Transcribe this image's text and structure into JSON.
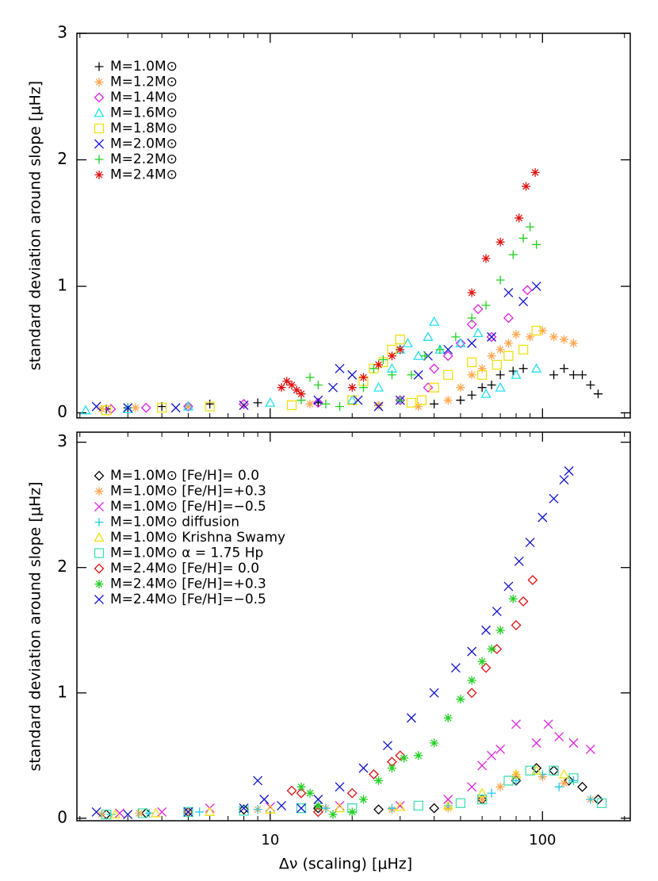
{
  "chart_data": [
    {
      "type": "scatter",
      "y_label": "standard deviation around slope [μHz]",
      "xscale": "log",
      "xlim": [
        1.95,
        210
      ],
      "xticks": [
        10,
        100
      ],
      "xminorticks": [
        2,
        3,
        4,
        5,
        6,
        7,
        8,
        9,
        20,
        30,
        40,
        50,
        60,
        70,
        80,
        90,
        200
      ],
      "show_xtick_labels": false,
      "ylim": [
        -0.04,
        3.0
      ],
      "yticks": [
        0,
        1,
        2,
        3
      ],
      "legend": "upper left",
      "series": [
        {
          "name": "M=1.0M⊙",
          "color": "#000000",
          "marker": "plus",
          "x": [
            2.5,
            3,
            4,
            6,
            9,
            15,
            25,
            40,
            50,
            55,
            60,
            65,
            70,
            78,
            85,
            110,
            120,
            130,
            140,
            150,
            160
          ],
          "values": [
            0.03,
            0.04,
            0.05,
            0.07,
            0.08,
            0.08,
            0.06,
            0.07,
            0.1,
            0.14,
            0.2,
            0.22,
            0.3,
            0.33,
            0.35,
            0.3,
            0.35,
            0.3,
            0.3,
            0.22,
            0.15
          ]
        },
        {
          "name": "M=1.2M⊙",
          "color": "#ffa64d",
          "marker": "asterisk",
          "x": [
            2.4,
            3.2,
            5,
            8,
            14,
            25,
            35,
            45,
            50,
            55,
            60,
            65,
            70,
            75,
            80,
            90,
            100,
            110,
            120,
            130
          ],
          "values": [
            0.03,
            0.04,
            0.05,
            0.06,
            0.07,
            0.06,
            0.05,
            0.1,
            0.2,
            0.3,
            0.35,
            0.45,
            0.5,
            0.55,
            0.62,
            0.6,
            0.65,
            0.6,
            0.58,
            0.55
          ]
        },
        {
          "name": "M=1.4M⊙",
          "color": "#e020e0",
          "marker": "diamond",
          "x": [
            2.6,
            3.5,
            5,
            8,
            15,
            30,
            38,
            40,
            45,
            50,
            55,
            58,
            65,
            75,
            88
          ],
          "values": [
            0.03,
            0.04,
            0.05,
            0.07,
            0.08,
            0.1,
            0.2,
            0.35,
            0.45,
            0.55,
            0.7,
            0.82,
            0.6,
            0.75,
            0.97
          ]
        },
        {
          "name": "M=1.6M⊙",
          "color": "#20e0f0",
          "marker": "triangle",
          "x": [
            2.1,
            3,
            5,
            10,
            20,
            25,
            28,
            30,
            32,
            35,
            38,
            40,
            42,
            50,
            58,
            62,
            70,
            80,
            95
          ],
          "values": [
            0.02,
            0.03,
            0.05,
            0.08,
            0.1,
            0.2,
            0.35,
            0.5,
            0.55,
            0.45,
            0.6,
            0.72,
            0.5,
            0.55,
            0.63,
            0.15,
            0.2,
            0.3,
            0.35
          ]
        },
        {
          "name": "M=1.8M⊙",
          "color": "#f0e010",
          "marker": "square",
          "x": [
            2.5,
            4,
            6,
            12,
            20,
            22,
            24,
            26,
            28,
            30,
            33,
            36,
            40,
            45,
            55,
            60,
            68,
            75,
            85,
            95
          ],
          "values": [
            0.02,
            0.04,
            0.05,
            0.06,
            0.1,
            0.25,
            0.35,
            0.4,
            0.5,
            0.58,
            0.08,
            0.1,
            0.2,
            0.3,
            0.4,
            0.3,
            0.38,
            0.45,
            0.5,
            0.65
          ]
        },
        {
          "name": "M=2.0M⊙",
          "color": "#1010d0",
          "marker": "x",
          "x": [
            2.3,
            3,
            4.5,
            8,
            15,
            17,
            18,
            20,
            21,
            25,
            30,
            35,
            38,
            45,
            55,
            65,
            75,
            85,
            95
          ],
          "values": [
            0.05,
            0.04,
            0.04,
            0.06,
            0.1,
            0.2,
            0.35,
            0.3,
            0.1,
            0.05,
            0.1,
            0.3,
            0.45,
            0.5,
            0.55,
            0.6,
            0.95,
            0.88,
            1.0
          ]
        },
        {
          "name": "M=2.2M⊙",
          "color": "#20d020",
          "marker": "plus",
          "x": [
            13,
            14,
            15,
            16,
            18,
            22,
            24,
            26,
            28,
            30,
            33,
            37,
            42,
            48,
            55,
            62,
            70,
            78,
            85,
            90,
            95
          ],
          "values": [
            0.1,
            0.28,
            0.22,
            0.07,
            0.05,
            0.2,
            0.35,
            0.42,
            0.3,
            0.1,
            0.3,
            0.45,
            0.5,
            0.6,
            0.75,
            0.85,
            1.05,
            1.25,
            1.38,
            1.47,
            1.33
          ]
        },
        {
          "name": "M=2.4M⊙",
          "color": "#e01010",
          "marker": "asterisk",
          "x": [
            11,
            11.5,
            12,
            12.5,
            13,
            20,
            22,
            25,
            28,
            30,
            55,
            62,
            70,
            82,
            87,
            94
          ],
          "values": [
            0.2,
            0.25,
            0.22,
            0.18,
            0.15,
            0.2,
            0.28,
            0.38,
            0.45,
            0.5,
            0.95,
            1.22,
            1.35,
            1.54,
            1.79,
            1.9
          ]
        }
      ]
    },
    {
      "type": "scatter",
      "x_label": "Δν (scaling) [μHz]",
      "y_label": "standard deviation around slope [μHz]",
      "xscale": "log",
      "xlim": [
        1.95,
        210
      ],
      "xticks": [
        10,
        100
      ],
      "xminorticks": [
        2,
        3,
        4,
        5,
        6,
        7,
        8,
        9,
        20,
        30,
        40,
        50,
        60,
        70,
        80,
        90,
        200
      ],
      "show_xtick_labels": true,
      "ylim": [
        -0.02,
        3.08
      ],
      "yticks": [
        0,
        1,
        2,
        3
      ],
      "legend": "upper left",
      "series": [
        {
          "name": "M=1.0M⊙ [Fe/H]=  0.0",
          "color": "#000000",
          "marker": "diamond",
          "x": [
            2.5,
            3.5,
            5,
            8,
            15,
            25,
            40,
            60,
            80,
            95,
            110,
            125,
            140,
            160
          ],
          "values": [
            0.03,
            0.04,
            0.05,
            0.07,
            0.08,
            0.07,
            0.08,
            0.15,
            0.3,
            0.4,
            0.38,
            0.3,
            0.25,
            0.15
          ]
        },
        {
          "name": "M=1.0M⊙ [Fe/H]=+0.3",
          "color": "#ffa64d",
          "marker": "asterisk",
          "x": [
            2.4,
            3.3,
            5,
            9,
            16,
            28,
            45,
            60,
            70,
            80,
            100,
            120,
            150
          ],
          "values": [
            0.03,
            0.04,
            0.05,
            0.07,
            0.08,
            0.07,
            0.08,
            0.15,
            0.25,
            0.35,
            0.33,
            0.28,
            0.15
          ]
        },
        {
          "name": "M=1.0M⊙ [Fe/H]=−0.5",
          "color": "#e020e0",
          "marker": "x",
          "x": [
            2.8,
            4,
            6,
            10,
            18,
            30,
            45,
            55,
            60,
            65,
            70,
            80,
            95,
            105,
            115,
            130,
            150
          ],
          "values": [
            0.04,
            0.05,
            0.08,
            0.09,
            0.1,
            0.1,
            0.15,
            0.25,
            0.42,
            0.5,
            0.55,
            0.75,
            0.6,
            0.75,
            0.65,
            0.6,
            0.55
          ]
        },
        {
          "name": "M=1.0M⊙ diffusion",
          "color": "#20c8f0",
          "marker": "plus",
          "x": [
            2.6,
            3.6,
            5.5,
            9,
            16,
            28,
            45,
            65,
            80,
            100,
            115,
            130,
            150
          ],
          "values": [
            0.03,
            0.04,
            0.05,
            0.07,
            0.08,
            0.08,
            0.1,
            0.2,
            0.3,
            0.35,
            0.25,
            0.3,
            0.15
          ]
        },
        {
          "name": "M=1.0M⊙ Krishna Swamy",
          "color": "#f0e010",
          "marker": "triangle",
          "x": [
            2.7,
            3.8,
            6,
            10,
            18,
            30,
            45,
            60,
            80,
            95,
            120
          ],
          "values": [
            0.03,
            0.04,
            0.05,
            0.07,
            0.08,
            0.09,
            0.1,
            0.2,
            0.35,
            0.38,
            0.35
          ]
        },
        {
          "name": "M=1.0M⊙ α = 1.75 Hp",
          "color": "#40e0b0",
          "marker": "square",
          "x": [
            2.5,
            3.4,
            5,
            8,
            13,
            20,
            35,
            50,
            60,
            75,
            90,
            110,
            130,
            165
          ],
          "values": [
            0.03,
            0.04,
            0.05,
            0.06,
            0.08,
            0.08,
            0.1,
            0.12,
            0.15,
            0.3,
            0.38,
            0.38,
            0.32,
            0.12
          ]
        },
        {
          "name": "M=2.4M⊙ [Fe/H]=  0.0",
          "color": "#e01010",
          "marker": "diamond",
          "x": [
            12,
            13,
            15,
            20,
            24,
            28,
            30,
            55,
            62,
            68,
            80,
            85,
            92
          ],
          "values": [
            0.22,
            0.2,
            0.05,
            0.2,
            0.35,
            0.45,
            0.5,
            1.0,
            1.2,
            1.35,
            1.54,
            1.73,
            1.9
          ]
        },
        {
          "name": "M=2.4M⊙ [Fe/H]=+0.3",
          "color": "#20d020",
          "marker": "asterisk",
          "x": [
            13,
            14,
            15,
            17,
            20,
            22,
            25,
            28,
            31,
            35,
            40,
            45,
            50,
            55,
            60,
            65,
            70,
            78
          ],
          "values": [
            0.25,
            0.2,
            0.1,
            0.03,
            0.05,
            0.15,
            0.3,
            0.4,
            0.48,
            0.5,
            0.6,
            0.8,
            0.95,
            1.1,
            1.25,
            1.35,
            1.5,
            1.75
          ]
        },
        {
          "name": "M=2.4M⊙ [Fe/H]=−0.5",
          "color": "#1010d0",
          "marker": "x",
          "x": [
            2.3,
            3,
            5,
            8,
            9,
            9.5,
            11,
            13,
            15,
            18,
            22,
            27,
            33,
            40,
            48,
            55,
            62,
            68,
            75,
            82,
            90,
            100,
            110,
            120,
            125
          ],
          "values": [
            0.05,
            0.03,
            0.05,
            0.08,
            0.3,
            0.15,
            0.1,
            0.08,
            0.15,
            0.25,
            0.4,
            0.58,
            0.8,
            1.0,
            1.2,
            1.33,
            1.5,
            1.65,
            1.85,
            2.05,
            2.2,
            2.4,
            2.55,
            2.7,
            2.77
          ]
        }
      ]
    }
  ]
}
